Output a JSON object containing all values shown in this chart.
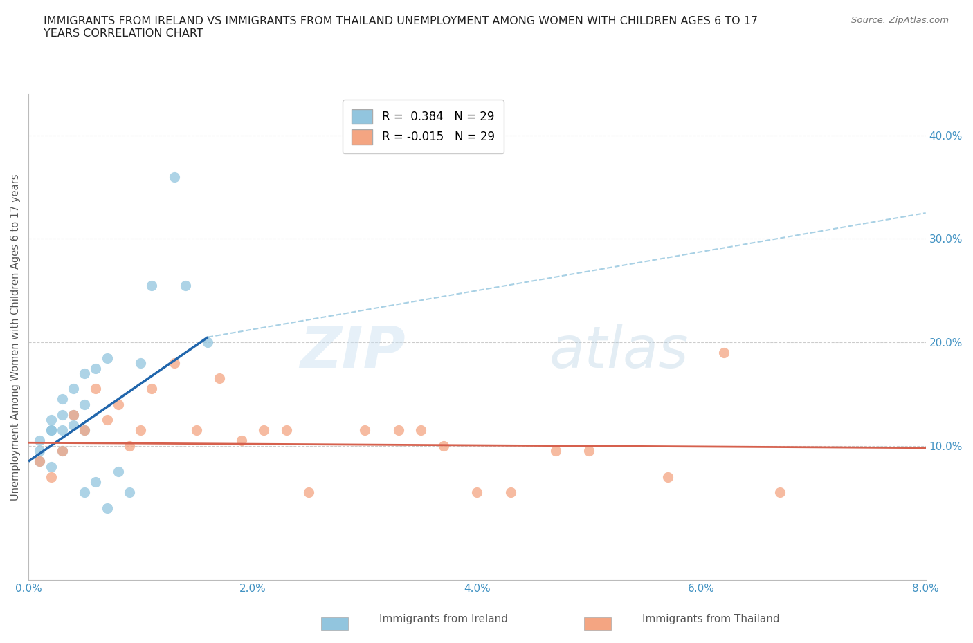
{
  "title": "IMMIGRANTS FROM IRELAND VS IMMIGRANTS FROM THAILAND UNEMPLOYMENT AMONG WOMEN WITH CHILDREN AGES 6 TO 17\nYEARS CORRELATION CHART",
  "source": "Source: ZipAtlas.com",
  "ylabel": "Unemployment Among Women with Children Ages 6 to 17 years",
  "xlabel_ireland": "Immigrants from Ireland",
  "xlabel_thailand": "Immigrants from Thailand",
  "legend_ireland_R": "0.384",
  "legend_ireland_N": "29",
  "legend_thailand_R": "-0.015",
  "legend_thailand_N": "29",
  "xlim": [
    0.0,
    0.08
  ],
  "ylim": [
    -0.03,
    0.44
  ],
  "xticks": [
    0.0,
    0.02,
    0.04,
    0.06,
    0.08
  ],
  "yticks": [
    0.1,
    0.2,
    0.3,
    0.4
  ],
  "ytick_labels": [
    "10.0%",
    "20.0%",
    "30.0%",
    "40.0%"
  ],
  "xtick_labels": [
    "0.0%",
    "2.0%",
    "4.0%",
    "6.0%",
    "8.0%"
  ],
  "color_ireland": "#92c5de",
  "color_thailand": "#f4a582",
  "color_trend_ireland": "#2166ac",
  "color_trend_thailand": "#d6604d",
  "color_axis_labels": "#4393c3",
  "ireland_x": [
    0.001,
    0.001,
    0.001,
    0.002,
    0.002,
    0.002,
    0.002,
    0.003,
    0.003,
    0.003,
    0.003,
    0.004,
    0.004,
    0.004,
    0.005,
    0.005,
    0.005,
    0.005,
    0.006,
    0.006,
    0.007,
    0.007,
    0.008,
    0.009,
    0.01,
    0.011,
    0.013,
    0.014,
    0.016
  ],
  "ireland_y": [
    0.085,
    0.095,
    0.105,
    0.115,
    0.125,
    0.115,
    0.08,
    0.13,
    0.145,
    0.115,
    0.095,
    0.13,
    0.155,
    0.12,
    0.14,
    0.17,
    0.115,
    0.055,
    0.175,
    0.065,
    0.185,
    0.04,
    0.075,
    0.055,
    0.18,
    0.255,
    0.36,
    0.255,
    0.2
  ],
  "thailand_x": [
    0.001,
    0.002,
    0.003,
    0.004,
    0.005,
    0.006,
    0.007,
    0.008,
    0.009,
    0.01,
    0.011,
    0.013,
    0.015,
    0.017,
    0.019,
    0.021,
    0.023,
    0.025,
    0.03,
    0.033,
    0.035,
    0.037,
    0.04,
    0.043,
    0.047,
    0.05,
    0.057,
    0.062,
    0.067
  ],
  "thailand_y": [
    0.085,
    0.07,
    0.095,
    0.13,
    0.115,
    0.155,
    0.125,
    0.14,
    0.1,
    0.115,
    0.155,
    0.18,
    0.115,
    0.165,
    0.105,
    0.115,
    0.115,
    0.055,
    0.115,
    0.115,
    0.115,
    0.1,
    0.055,
    0.055,
    0.095,
    0.095,
    0.07,
    0.19,
    0.055
  ],
  "trend_ireland_x0": 0.0,
  "trend_ireland_x1": 0.016,
  "trend_ireland_y0": 0.085,
  "trend_ireland_y1": 0.205,
  "trend_ireland_ext_x0": 0.016,
  "trend_ireland_ext_x1": 0.08,
  "trend_ireland_ext_y0": 0.205,
  "trend_ireland_ext_y1": 0.325,
  "trend_thailand_x0": 0.0,
  "trend_thailand_x1": 0.08,
  "trend_thailand_y0": 0.103,
  "trend_thailand_y1": 0.098
}
